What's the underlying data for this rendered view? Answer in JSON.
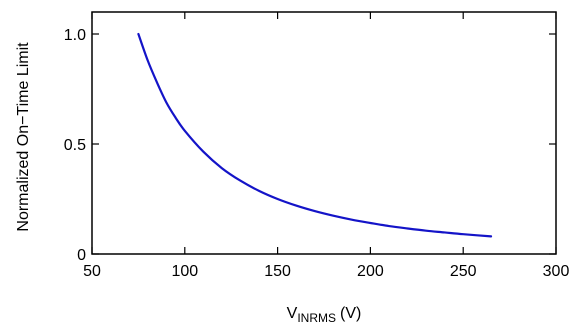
{
  "chart_data": {
    "type": "line",
    "title": "",
    "xlabel": {
      "main": "V",
      "subscript": "INRMS",
      "unit": "(V)"
    },
    "ylabel": "Normalized On−Time Limit",
    "xlim": [
      50,
      300
    ],
    "ylim": [
      0,
      1.1
    ],
    "x_ticks": [
      50,
      100,
      150,
      200,
      250,
      300
    ],
    "x_tick_labels": [
      "50",
      "100",
      "150",
      "200",
      "250",
      "300"
    ],
    "y_ticks": [
      0,
      0.5,
      1.0
    ],
    "y_tick_labels": [
      "0",
      "0.5",
      "1.0"
    ],
    "grid": false,
    "legend": "none",
    "series": [
      {
        "color": "#1414c8",
        "x": [
          75,
          80,
          85,
          90,
          95,
          100,
          110,
          120,
          130,
          140,
          150,
          160,
          170,
          180,
          190,
          200,
          210,
          220,
          230,
          240,
          250,
          265
        ],
        "y": [
          1.0,
          0.88,
          0.78,
          0.69,
          0.62,
          0.56,
          0.465,
          0.39,
          0.333,
          0.287,
          0.25,
          0.22,
          0.195,
          0.174,
          0.156,
          0.141,
          0.127,
          0.116,
          0.106,
          0.098,
          0.09,
          0.08
        ]
      }
    ]
  }
}
